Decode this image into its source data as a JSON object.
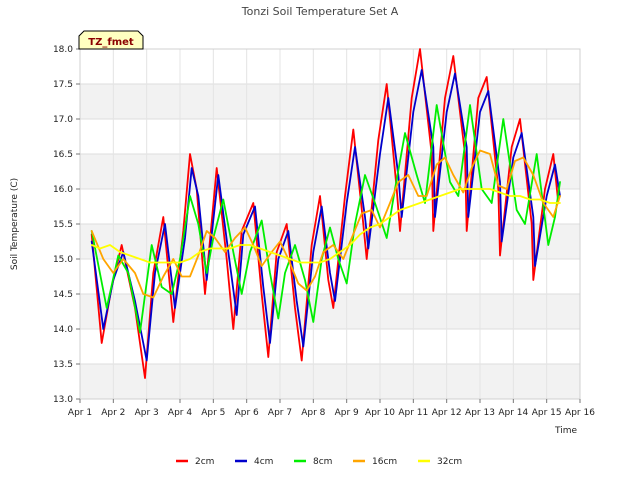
{
  "chart_data": {
    "type": "line",
    "title": "Tonzi Soil Temperature Set A",
    "xlabel": "Time",
    "ylabel": "Soil Temperature (C)",
    "badge": "TZ_fmet",
    "ylim": [
      13.0,
      18.0
    ],
    "xlim": [
      1,
      16
    ],
    "y_ticks": [
      "13.0",
      "13.5",
      "14.0",
      "14.5",
      "15.0",
      "15.5",
      "16.0",
      "16.5",
      "17.0",
      "17.5",
      "18.0"
    ],
    "x_ticks": [
      "Apr 1",
      "Apr 2",
      "Apr 3",
      "Apr 4",
      "Apr 5",
      "Apr 6",
      "Apr 7",
      "Apr 8",
      "Apr 9",
      "Apr 10",
      "Apr 11",
      "Apr 12",
      "Apr 13",
      "Apr 14",
      "Apr 15",
      "Apr 16"
    ],
    "grid": "horizontal bands",
    "legend_position": "bottom",
    "series": [
      {
        "name": "2cm",
        "color": "#ff0000",
        "x": [
          1.35,
          1.65,
          1.95,
          2.25,
          2.65,
          2.95,
          3.2,
          3.5,
          3.8,
          4.1,
          4.3,
          4.5,
          4.75,
          5.1,
          5.4,
          5.6,
          5.85,
          6.2,
          6.45,
          6.65,
          6.9,
          7.2,
          7.45,
          7.65,
          7.95,
          8.2,
          8.45,
          8.6,
          8.95,
          9.2,
          9.5,
          9.6,
          9.95,
          10.2,
          10.5,
          10.6,
          10.95,
          11.2,
          11.55,
          11.6,
          11.95,
          12.2,
          12.55,
          12.6,
          12.95,
          13.2,
          13.55,
          13.6,
          13.95,
          14.2,
          14.55,
          14.6,
          14.95,
          15.2,
          15.35
        ],
        "y": [
          15.35,
          13.8,
          14.6,
          15.2,
          14.3,
          13.3,
          14.8,
          15.6,
          14.1,
          15.4,
          16.5,
          16.0,
          14.5,
          16.3,
          15.0,
          14.0,
          15.4,
          15.8,
          14.5,
          13.6,
          15.1,
          15.5,
          14.3,
          13.55,
          15.2,
          15.9,
          14.7,
          14.3,
          15.9,
          16.85,
          15.5,
          15.0,
          16.7,
          17.5,
          16.0,
          15.4,
          17.3,
          18.0,
          16.5,
          15.4,
          17.3,
          17.9,
          16.5,
          15.4,
          17.3,
          17.6,
          16.0,
          15.05,
          16.6,
          17.0,
          15.5,
          14.7,
          16.0,
          16.5,
          15.8
        ]
      },
      {
        "name": "4cm",
        "color": "#0000cc",
        "x": [
          1.35,
          1.7,
          2.0,
          2.3,
          2.65,
          3.0,
          3.25,
          3.55,
          3.85,
          4.15,
          4.35,
          4.55,
          4.8,
          5.15,
          5.45,
          5.7,
          5.9,
          6.25,
          6.5,
          6.7,
          6.95,
          7.25,
          7.5,
          7.7,
          8.0,
          8.25,
          8.5,
          8.65,
          9.0,
          9.25,
          9.55,
          9.65,
          10.0,
          10.25,
          10.55,
          10.65,
          11.0,
          11.25,
          11.6,
          11.65,
          12.0,
          12.25,
          12.6,
          12.65,
          13.0,
          13.25,
          13.6,
          13.65,
          14.0,
          14.25,
          14.6,
          14.65,
          15.0,
          15.25,
          15.4
        ],
        "y": [
          15.25,
          14.0,
          14.7,
          15.1,
          14.4,
          13.55,
          14.8,
          15.5,
          14.3,
          15.3,
          16.3,
          15.9,
          14.7,
          16.2,
          15.1,
          14.2,
          15.35,
          15.75,
          14.6,
          13.8,
          15.0,
          15.4,
          14.4,
          13.75,
          15.1,
          15.75,
          14.8,
          14.4,
          15.8,
          16.6,
          15.6,
          15.15,
          16.5,
          17.3,
          16.2,
          15.6,
          17.1,
          17.7,
          16.6,
          15.6,
          17.1,
          17.65,
          16.6,
          15.6,
          17.1,
          17.4,
          16.1,
          15.25,
          16.45,
          16.8,
          15.6,
          14.9,
          15.9,
          16.35,
          15.9
        ]
      },
      {
        "name": "8cm",
        "color": "#00ee00",
        "x": [
          1.35,
          1.8,
          2.15,
          2.45,
          2.8,
          3.15,
          3.45,
          3.75,
          4.0,
          4.3,
          4.55,
          4.8,
          5.0,
          5.3,
          5.6,
          5.85,
          6.1,
          6.45,
          6.7,
          6.95,
          7.15,
          7.45,
          7.75,
          8.0,
          8.25,
          8.5,
          8.75,
          9.0,
          9.25,
          9.55,
          9.85,
          10.2,
          10.45,
          10.75,
          11.1,
          11.35,
          11.7,
          12.1,
          12.35,
          12.7,
          13.05,
          13.35,
          13.7,
          14.1,
          14.35,
          14.7,
          15.05,
          15.25,
          15.4
        ],
        "y": [
          15.4,
          14.3,
          15.05,
          14.8,
          13.95,
          15.2,
          14.6,
          14.5,
          15.0,
          15.9,
          15.5,
          14.8,
          15.3,
          15.85,
          15.1,
          14.5,
          15.1,
          15.55,
          14.8,
          14.15,
          14.8,
          15.2,
          14.7,
          14.1,
          15.0,
          15.45,
          15.0,
          14.65,
          15.5,
          16.2,
          15.8,
          15.3,
          16.0,
          16.8,
          16.2,
          15.8,
          17.2,
          16.1,
          15.9,
          17.2,
          16.0,
          15.8,
          17.0,
          15.7,
          15.5,
          16.5,
          15.2,
          15.6,
          16.1
        ]
      },
      {
        "name": "16cm",
        "color": "#ffa500",
        "x": [
          1.35,
          1.7,
          2.0,
          2.3,
          2.65,
          2.9,
          3.2,
          3.5,
          3.8,
          4.05,
          4.3,
          4.55,
          4.8,
          5.05,
          5.35,
          5.65,
          5.95,
          6.2,
          6.45,
          6.75,
          7.0,
          7.25,
          7.55,
          7.8,
          8.05,
          8.3,
          8.6,
          8.9,
          9.15,
          9.45,
          9.75,
          10.0,
          10.3,
          10.55,
          10.85,
          11.15,
          11.4,
          11.7,
          11.95,
          12.2,
          12.5,
          12.75,
          13.0,
          13.3,
          13.55,
          13.8,
          14.05,
          14.3,
          14.6,
          14.9,
          15.2,
          15.4
        ],
        "y": [
          15.4,
          15.0,
          14.8,
          15.0,
          14.8,
          14.5,
          14.45,
          14.75,
          15.0,
          14.75,
          14.75,
          15.05,
          15.4,
          15.3,
          15.1,
          15.3,
          15.45,
          15.2,
          14.9,
          15.1,
          15.25,
          15.0,
          14.65,
          14.55,
          14.75,
          15.1,
          15.2,
          15.0,
          15.3,
          15.65,
          15.7,
          15.45,
          15.8,
          16.1,
          16.2,
          15.9,
          15.9,
          16.35,
          16.45,
          16.2,
          15.95,
          16.3,
          16.55,
          16.5,
          16.05,
          16.0,
          16.4,
          16.45,
          16.2,
          15.8,
          15.6,
          15.9
        ]
      },
      {
        "name": "32cm",
        "color": "#ffff00",
        "x": [
          1.35,
          1.6,
          1.9,
          2.2,
          2.5,
          2.8,
          3.1,
          3.4,
          3.7,
          4.0,
          4.3,
          4.6,
          4.9,
          5.2,
          5.5,
          5.8,
          6.1,
          6.4,
          6.7,
          7.0,
          7.3,
          7.6,
          7.9,
          8.2,
          8.5,
          8.8,
          9.1,
          9.4,
          9.7,
          10.0,
          10.3,
          10.6,
          10.9,
          11.2,
          11.5,
          11.8,
          12.1,
          12.4,
          12.7,
          13.0,
          13.3,
          13.6,
          13.9,
          14.2,
          14.5,
          14.8,
          15.1,
          15.4
        ],
        "y": [
          15.2,
          15.15,
          15.2,
          15.1,
          15.05,
          15.0,
          14.95,
          14.95,
          14.95,
          14.95,
          15.0,
          15.1,
          15.15,
          15.15,
          15.15,
          15.2,
          15.2,
          15.15,
          15.1,
          15.05,
          15.0,
          14.95,
          14.95,
          14.95,
          15.0,
          15.1,
          15.2,
          15.35,
          15.45,
          15.5,
          15.6,
          15.7,
          15.75,
          15.8,
          15.85,
          15.9,
          15.95,
          16.0,
          16.0,
          16.0,
          16.0,
          15.95,
          15.9,
          15.9,
          15.85,
          15.85,
          15.8,
          15.8
        ]
      }
    ]
  }
}
